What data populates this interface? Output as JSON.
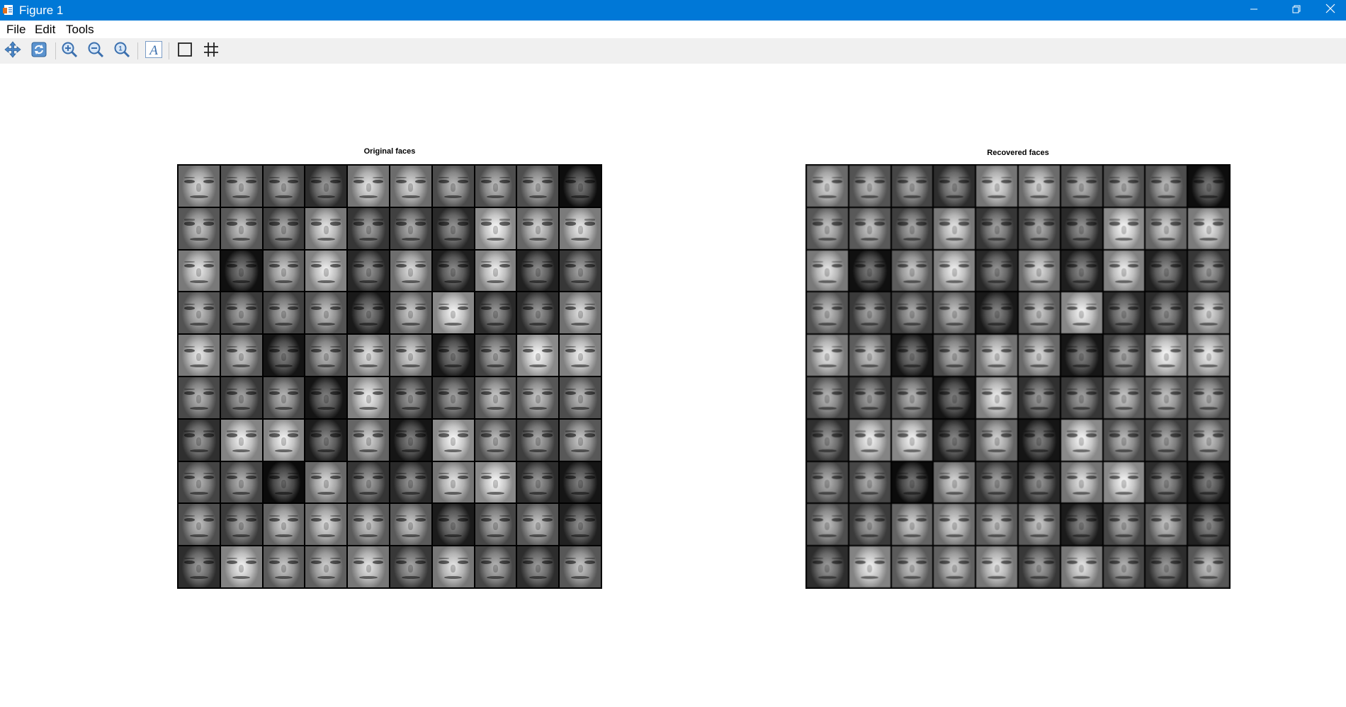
{
  "window": {
    "title": "Figure 1",
    "title_bar_color": "#0078d7",
    "controls": [
      "minimize-icon",
      "restore-icon",
      "close-icon"
    ]
  },
  "menu": {
    "items": [
      {
        "label": "File"
      },
      {
        "label": "Edit"
      },
      {
        "label": "Tools"
      }
    ]
  },
  "toolbar": {
    "tools": [
      {
        "name": "pan-icon"
      },
      {
        "name": "rotate-icon"
      },
      {
        "name": "zoom-in-icon"
      },
      {
        "name": "zoom-out-icon"
      },
      {
        "name": "zoom-reset-icon"
      },
      {
        "name": "insert-text-icon"
      },
      {
        "name": "box-icon"
      },
      {
        "name": "grid-icon"
      }
    ]
  },
  "figure": {
    "background": "#ffffff",
    "axes": [
      {
        "title": "Original faces",
        "rows": 10,
        "cols": 10
      },
      {
        "title": "Recovered faces",
        "rows": 10,
        "cols": 10
      }
    ]
  }
}
